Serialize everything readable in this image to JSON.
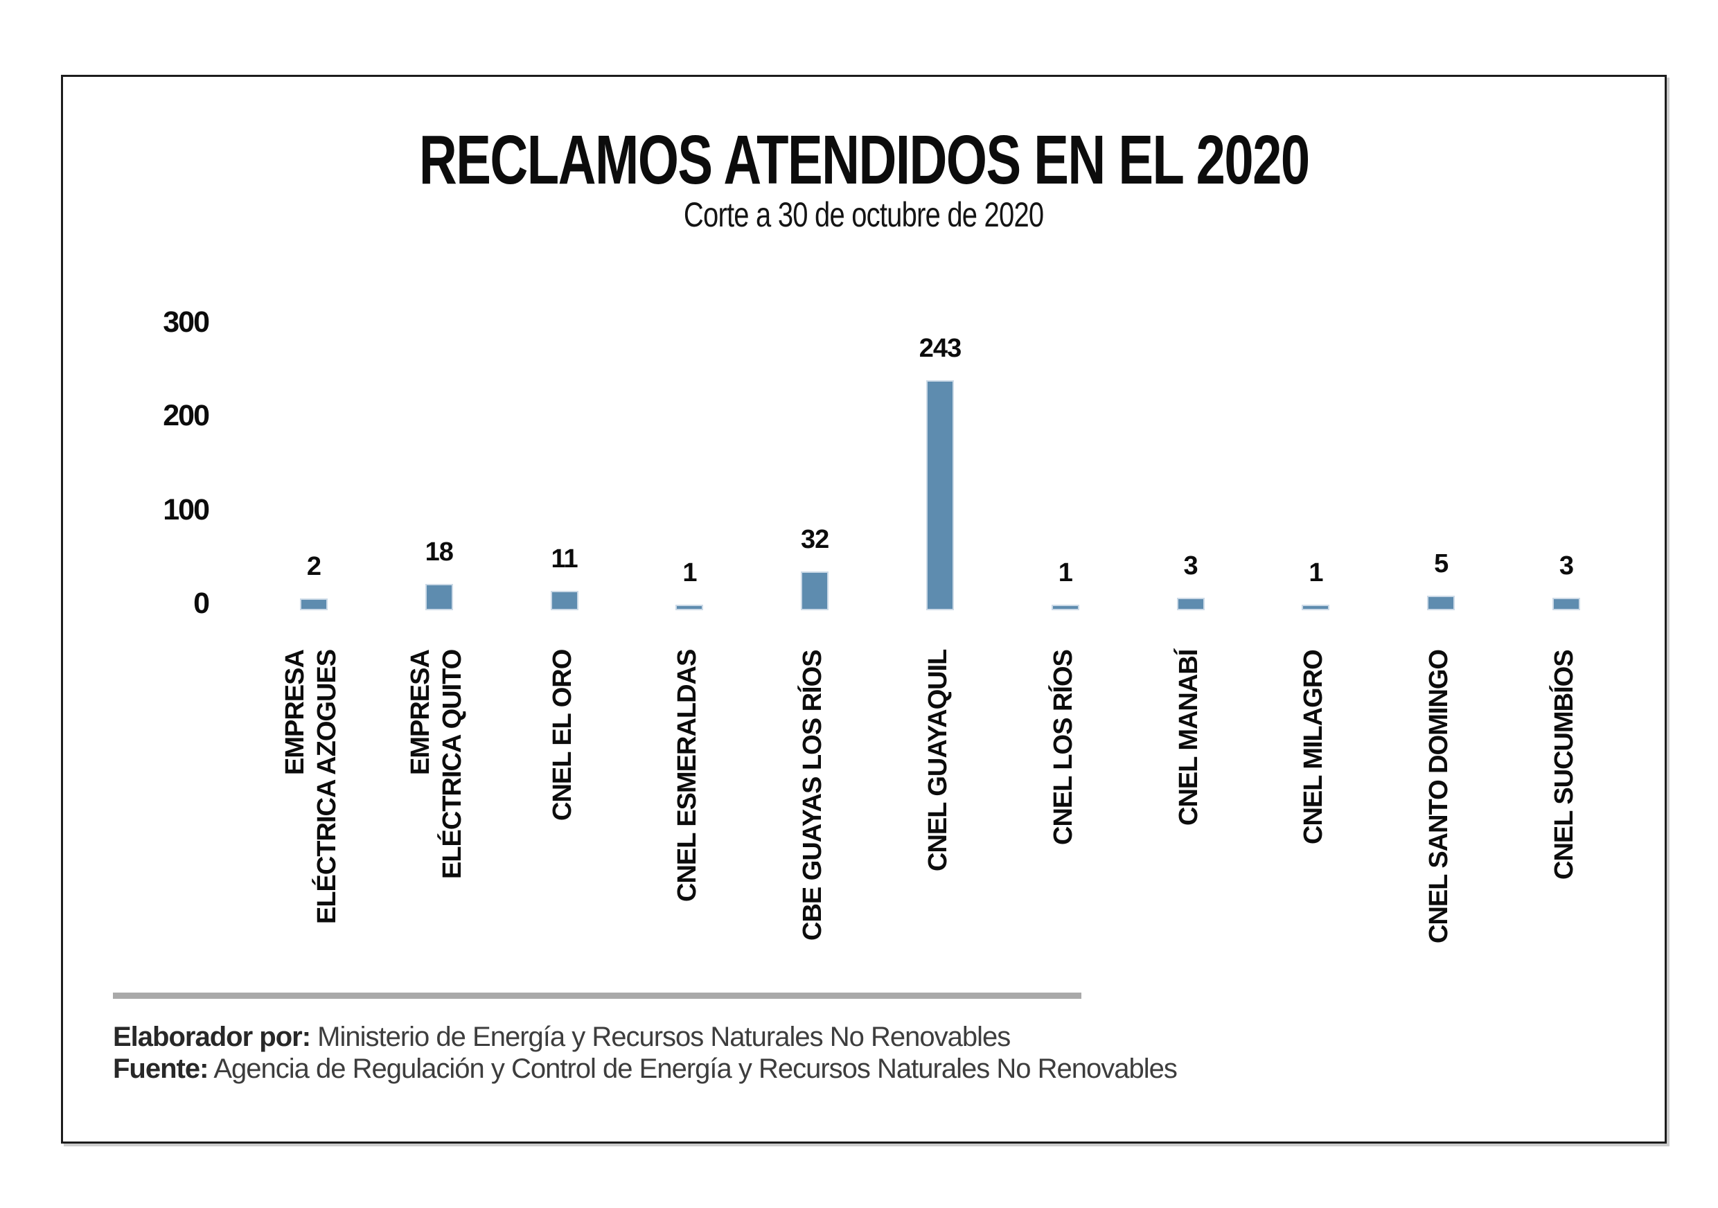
{
  "chart_data": {
    "type": "bar",
    "title": "RECLAMOS ATENDIDOS EN EL 2020",
    "subtitle": "Corte a 30 de octubre de 2020",
    "categories": [
      "EMPRESA\nELÉCTRICA AZOGUES",
      "EMPRESA\nELÉCTRICA QUITO",
      "CNEL EL ORO",
      "CNEL ESMERALDAS",
      "CBE GUAYAS LOS RÍOS",
      "CNEL GUAYAQUIL",
      "CNEL LOS RÍOS",
      "CNEL MANABÍ",
      "CNEL MILAGRO",
      "CNEL SANTO DOMINGO",
      "CNEL SUCUMBÍOS"
    ],
    "values": [
      2,
      18,
      11,
      1,
      32,
      243,
      1,
      3,
      1,
      5,
      3
    ],
    "data_labels": [
      "2",
      "18",
      "11",
      "1",
      "32",
      "243",
      "1",
      "3",
      "1",
      "5",
      "3"
    ],
    "yticks": [
      0,
      100,
      200,
      300
    ],
    "ylim": [
      0,
      300
    ],
    "xlabel": "",
    "ylabel": "",
    "grid": false,
    "legend": "none",
    "bar_color": "#5e8caf",
    "bar_border_color": "#ccdae7"
  },
  "footer": {
    "elaborador_label": "Elaborador por:",
    "elaborador_text": " Ministerio de Energía y Recursos Naturales No Renovables",
    "fuente_label": "Fuente:",
    "fuente_text": " Agencia de Regulación y Control de Energía y Recursos Naturales No Renovables",
    "divider_color": "#a9a9a9"
  },
  "colors": {
    "text": "#0c0c0c",
    "footer_text": "#3d3d3d",
    "frame_border": "#1c1c1c",
    "background": "#ffffff"
  }
}
